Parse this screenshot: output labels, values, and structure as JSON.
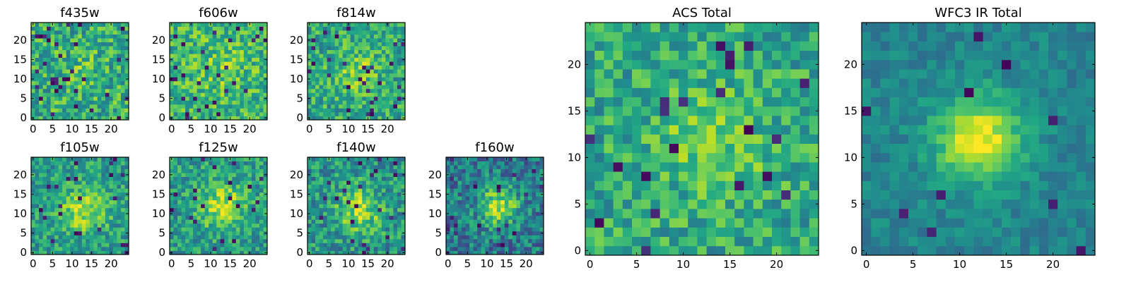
{
  "chart_data": [
    {
      "type": "heatmap",
      "title": "f435w",
      "colormap": "viridis",
      "grid": false,
      "image_size": 25,
      "xlim": [
        0,
        25
      ],
      "ylim": [
        0,
        25
      ],
      "xticks": [
        0,
        5,
        10,
        15,
        20
      ],
      "yticks": [
        0,
        5,
        10,
        15,
        20
      ],
      "pattern": {
        "center": [
          12,
          12
        ],
        "sigma": 4,
        "peak": 0.08,
        "base": 0.62,
        "noise": 0.24,
        "dark_fraction": 0.05,
        "seed": 11
      }
    },
    {
      "type": "heatmap",
      "title": "f606w",
      "colormap": "viridis",
      "grid": false,
      "image_size": 25,
      "xlim": [
        0,
        25
      ],
      "ylim": [
        0,
        25
      ],
      "xticks": [
        0,
        5,
        10,
        15,
        20
      ],
      "yticks": [
        0,
        5,
        10,
        15,
        20
      ],
      "pattern": {
        "center": [
          13,
          13
        ],
        "sigma": 4,
        "peak": 0.12,
        "base": 0.66,
        "noise": 0.22,
        "dark_fraction": 0.04,
        "seed": 23
      }
    },
    {
      "type": "heatmap",
      "title": "f814w",
      "colormap": "viridis",
      "grid": false,
      "image_size": 25,
      "xlim": [
        0,
        25
      ],
      "ylim": [
        0,
        25
      ],
      "xticks": [
        0,
        5,
        10,
        15,
        20
      ],
      "yticks": [
        0,
        5,
        10,
        15,
        20
      ],
      "pattern": {
        "center": [
          12,
          12
        ],
        "sigma": 4,
        "peak": 0.2,
        "base": 0.6,
        "noise": 0.22,
        "dark_fraction": 0.04,
        "seed": 37
      }
    },
    {
      "type": "heatmap",
      "title": "f105w",
      "colormap": "viridis",
      "grid": false,
      "image_size": 25,
      "xlim": [
        0,
        25
      ],
      "ylim": [
        0,
        25
      ],
      "xticks": [
        0,
        5,
        10,
        15,
        20
      ],
      "yticks": [
        0,
        5,
        10,
        15,
        20
      ],
      "pattern": {
        "center": [
          13,
          11
        ],
        "sigma": 4,
        "peak": 0.35,
        "base": 0.55,
        "noise": 0.2,
        "dark_fraction": 0.03,
        "seed": 41
      }
    },
    {
      "type": "heatmap",
      "title": "f125w",
      "colormap": "viridis",
      "grid": false,
      "image_size": 25,
      "xlim": [
        0,
        25
      ],
      "ylim": [
        0,
        25
      ],
      "xticks": [
        0,
        5,
        10,
        15,
        20
      ],
      "yticks": [
        0,
        5,
        10,
        15,
        20
      ],
      "pattern": {
        "center": [
          13,
          12
        ],
        "sigma": 4,
        "peak": 0.35,
        "base": 0.55,
        "noise": 0.2,
        "dark_fraction": 0.03,
        "seed": 53
      }
    },
    {
      "type": "heatmap",
      "title": "f140w",
      "colormap": "viridis",
      "grid": false,
      "image_size": 25,
      "xlim": [
        0,
        25
      ],
      "ylim": [
        0,
        25
      ],
      "xticks": [
        0,
        5,
        10,
        15,
        20
      ],
      "yticks": [
        0,
        5,
        10,
        15,
        20
      ],
      "pattern": {
        "center": [
          13,
          11
        ],
        "sigma": 4,
        "peak": 0.35,
        "base": 0.52,
        "noise": 0.22,
        "dark_fraction": 0.04,
        "seed": 67
      }
    },
    {
      "type": "heatmap",
      "title": "f160w",
      "colormap": "viridis",
      "grid": false,
      "image_size": 25,
      "xlim": [
        0,
        25
      ],
      "ylim": [
        0,
        25
      ],
      "xticks": [
        0,
        5,
        10,
        15,
        20
      ],
      "yticks": [
        0,
        5,
        10,
        15,
        20
      ],
      "pattern": {
        "center": [
          13,
          12
        ],
        "sigma": 3.5,
        "peak": 0.45,
        "base": 0.42,
        "noise": 0.22,
        "dark_fraction": 0.05,
        "seed": 79
      }
    },
    {
      "type": "heatmap",
      "title": "ACS Total",
      "colormap": "viridis",
      "grid": false,
      "image_size": 25,
      "xlim": [
        0,
        25
      ],
      "ylim": [
        0,
        25
      ],
      "xticks": [
        0,
        5,
        10,
        15,
        20
      ],
      "yticks": [
        0,
        5,
        10,
        15,
        20
      ],
      "pattern": {
        "center": [
          13,
          12
        ],
        "sigma": 4,
        "peak": 0.22,
        "base": 0.6,
        "noise": 0.2,
        "dark_fraction": 0.035,
        "seed": 97
      }
    },
    {
      "type": "heatmap",
      "title": "WFC3 IR Total",
      "colormap": "viridis",
      "grid": false,
      "image_size": 25,
      "xlim": [
        0,
        25
      ],
      "ylim": [
        0,
        25
      ],
      "xticks": [
        0,
        5,
        10,
        15,
        20
      ],
      "yticks": [
        0,
        5,
        10,
        15,
        20
      ],
      "pattern": {
        "center": [
          12,
          12
        ],
        "sigma": 3.2,
        "peak": 0.55,
        "base": 0.45,
        "noise": 0.1,
        "dark_fraction": 0.02,
        "seed": 131
      }
    }
  ]
}
